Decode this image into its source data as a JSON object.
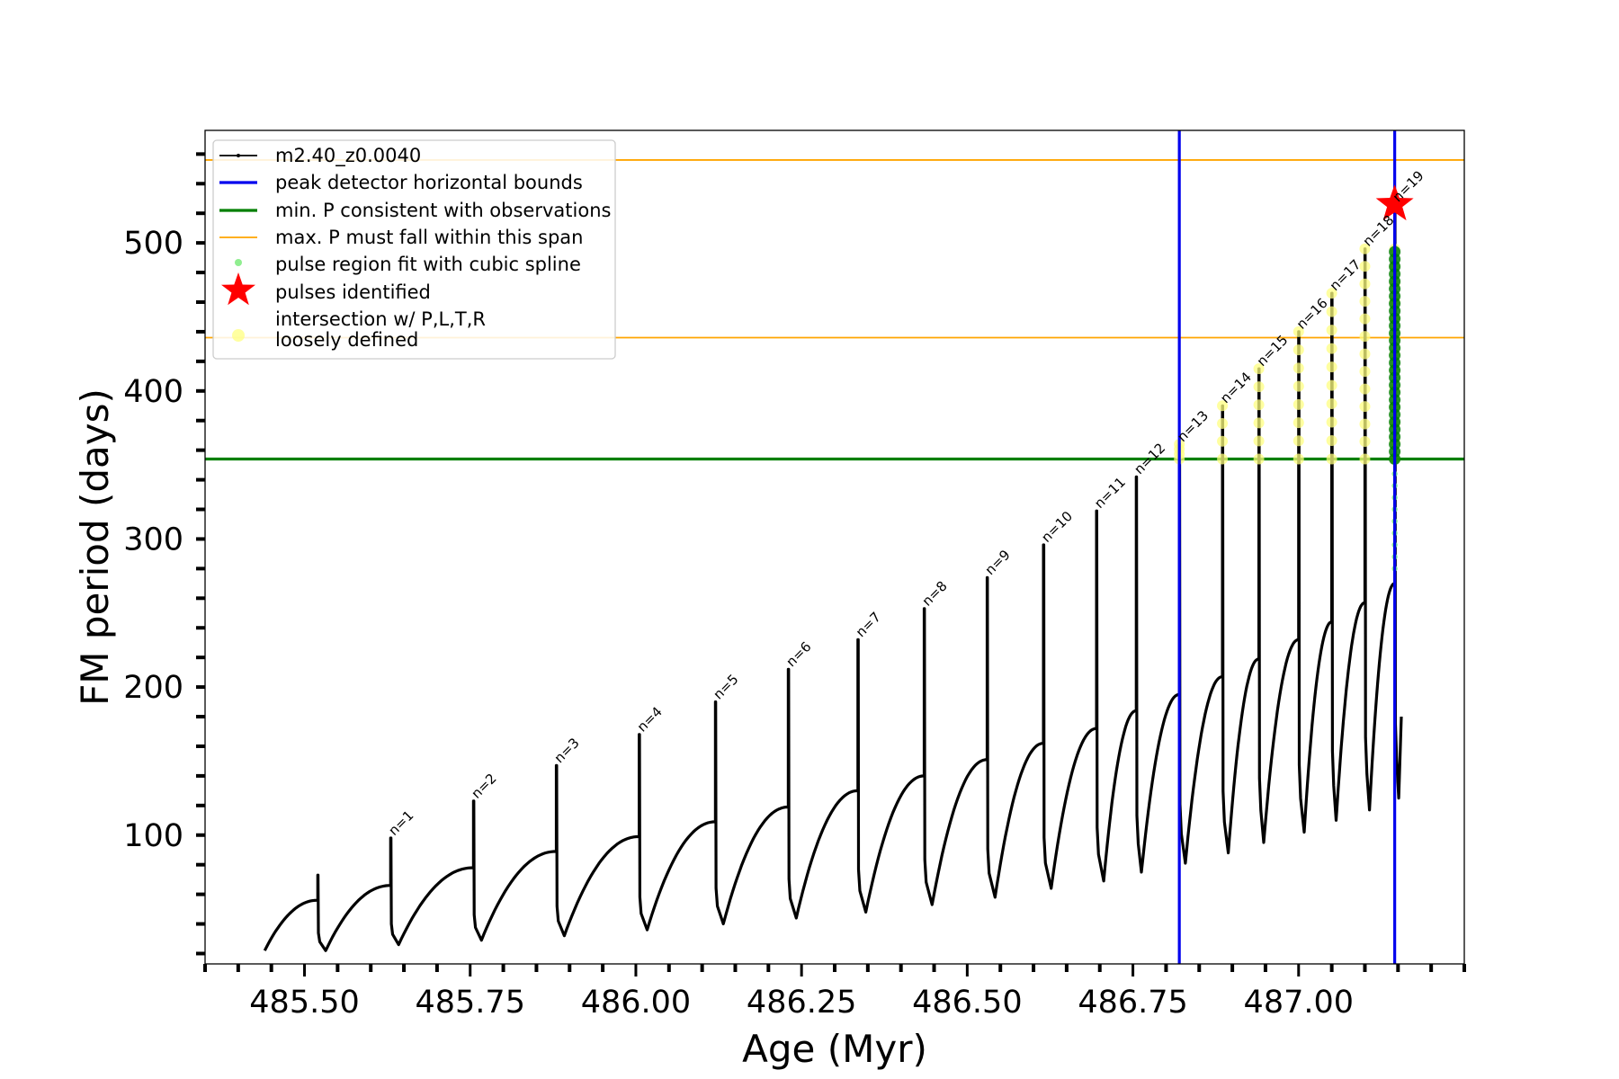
{
  "chart_data": {
    "type": "line",
    "title": "",
    "xlabel": "Age (Myr)",
    "ylabel": "FM period (days)",
    "xlim": [
      485.35,
      487.25
    ],
    "ylim": [
      13,
      576
    ],
    "xticks": [
      485.5,
      485.75,
      486.0,
      486.25,
      486.5,
      486.75,
      487.0
    ],
    "xtick_labels": [
      "485.50",
      "485.75",
      "486.00",
      "486.25",
      "486.50",
      "486.75",
      "487.00"
    ],
    "yticks": [
      100,
      200,
      300,
      400,
      500
    ],
    "ytick_labels": [
      "100",
      "200",
      "300",
      "400",
      "500"
    ],
    "grid": false,
    "legend_position": "top-left",
    "colors": {
      "track": "#000000",
      "bounds": "#0000ee",
      "min_p": "#007f00",
      "max_p": "#ffa500",
      "spline": "#90ee90",
      "star": "#ff0000",
      "loose": "#ffff80"
    },
    "legend": [
      {
        "key": "track",
        "label": "m2.40_z0.0040"
      },
      {
        "key": "bounds",
        "label": "peak detector horizontal bounds"
      },
      {
        "key": "min_p",
        "label": "min. P consistent with observations"
      },
      {
        "key": "max_p",
        "label": "max. P must fall within this span"
      },
      {
        "key": "spline",
        "label": "pulse region fit with cubic spline"
      },
      {
        "key": "star",
        "label": "pulses identified"
      },
      {
        "key": "loose",
        "label": "intersection w/ P,L,T,R",
        "label2": "loosely defined"
      }
    ],
    "vertical_bounds": [
      486.82,
      487.145
    ],
    "min_p": 354,
    "max_p_span": [
      436,
      556
    ],
    "start": {
      "age": 485.44,
      "period": 22
    },
    "pulses": [
      {
        "n": "",
        "age": 485.52,
        "peak": 73,
        "pre": 56,
        "post_min": 22
      },
      {
        "n": "n=1",
        "age": 485.63,
        "peak": 98,
        "pre": 66,
        "post_min": 26
      },
      {
        "n": "n=2",
        "age": 485.755,
        "peak": 123,
        "pre": 78,
        "post_min": 29
      },
      {
        "n": "n=3",
        "age": 485.88,
        "peak": 147,
        "pre": 89,
        "post_min": 32
      },
      {
        "n": "n=4",
        "age": 486.005,
        "peak": 168,
        "pre": 99,
        "post_min": 36
      },
      {
        "n": "n=5",
        "age": 486.12,
        "peak": 190,
        "pre": 109,
        "post_min": 40
      },
      {
        "n": "n=6",
        "age": 486.23,
        "peak": 212,
        "pre": 119,
        "post_min": 44
      },
      {
        "n": "n=7",
        "age": 486.335,
        "peak": 232,
        "pre": 130,
        "post_min": 48
      },
      {
        "n": "n=8",
        "age": 486.435,
        "peak": 253,
        "pre": 140,
        "post_min": 53
      },
      {
        "n": "n=9",
        "age": 486.53,
        "peak": 274,
        "pre": 151,
        "post_min": 58
      },
      {
        "n": "n=10",
        "age": 486.615,
        "peak": 296,
        "pre": 162,
        "post_min": 64
      },
      {
        "n": "n=11",
        "age": 486.695,
        "peak": 319,
        "pre": 172,
        "post_min": 69
      },
      {
        "n": "n=12",
        "age": 486.755,
        "peak": 342,
        "pre": 184,
        "post_min": 75
      },
      {
        "n": "n=13",
        "age": 486.82,
        "peak": 364,
        "pre": 195,
        "post_min": 81
      },
      {
        "n": "n=14",
        "age": 486.885,
        "peak": 390,
        "pre": 207,
        "post_min": 88
      },
      {
        "n": "n=15",
        "age": 486.94,
        "peak": 415,
        "pre": 219,
        "post_min": 95
      },
      {
        "n": "n=16",
        "age": 487.0,
        "peak": 440,
        "pre": 232,
        "post_min": 102
      },
      {
        "n": "n=17",
        "age": 487.05,
        "peak": 466,
        "pre": 244,
        "post_min": 110
      },
      {
        "n": "n=18",
        "age": 487.1,
        "peak": 496,
        "pre": 257,
        "post_min": 117
      },
      {
        "n": "n=19",
        "age": 487.145,
        "peak": 526,
        "pre": 270,
        "post_min": 125
      }
    ],
    "tail": {
      "age": 487.155,
      "period": 180
    },
    "pulses_identified": [
      {
        "age": 487.145,
        "period": 526
      }
    ]
  }
}
